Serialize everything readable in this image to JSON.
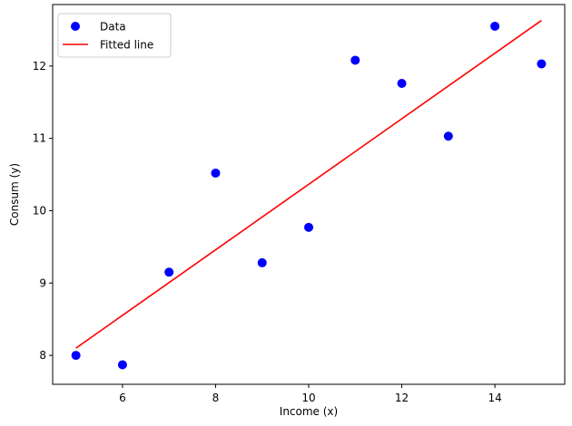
{
  "chart_data": {
    "type": "scatter",
    "title": "",
    "xlabel": "Income (x)",
    "ylabel": "Consum (y)",
    "xlim": [
      4.5,
      15.5
    ],
    "ylim": [
      7.6,
      12.85
    ],
    "xticks": [
      6,
      8,
      10,
      12,
      14
    ],
    "yticks": [
      8,
      9,
      10,
      11,
      12
    ],
    "grid": false,
    "legend_position": "top-left",
    "series": [
      {
        "name": "Data",
        "kind": "scatter",
        "color": "#0000ff",
        "x": [
          5,
          6,
          7,
          8,
          9,
          10,
          11,
          12,
          13,
          14,
          15
        ],
        "y": [
          8.0,
          7.87,
          9.15,
          10.52,
          9.28,
          9.77,
          12.08,
          11.76,
          11.03,
          12.55,
          12.03
        ]
      },
      {
        "name": "Fitted line",
        "kind": "line",
        "color": "#ff0000",
        "x": [
          5,
          15
        ],
        "y": [
          8.1,
          12.63
        ]
      }
    ]
  }
}
